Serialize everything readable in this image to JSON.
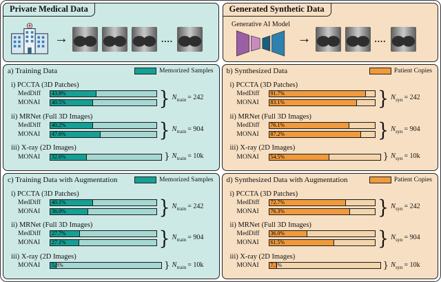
{
  "top": {
    "private_title": "Private Medical Data",
    "synthetic_title": "Generated Synthetic Data",
    "model_label": "Generative AI Model"
  },
  "glyphs": {
    "arrow": "→",
    "dots": "....",
    "brace": "}"
  },
  "colors": {
    "teal_bg": "#cde9e6",
    "teal_fill": "#16a095",
    "teal_track": "#a5d8d3",
    "orange_bg": "#f7dfc3",
    "orange_fill": "#f09a3d",
    "orange_track": "#f3d5ab",
    "ink": "#1b1b1b",
    "model_purple": "#9c5fa5",
    "model_pink": "#c98ac2",
    "model_darkblue": "#17607f",
    "model_blue": "#2f81ad"
  },
  "chart_data": [
    {
      "type": "bar",
      "panel": "a",
      "title": "a) Training Data",
      "legend": "Memorized Samples",
      "unit": "%",
      "xlim": [
        0,
        100
      ],
      "groups": [
        {
          "title": "i) PCCTA (3D Patches)",
          "n_var": "N",
          "n_sub": "train",
          "n_value": "= 242",
          "rows": [
            {
              "label": "MedDiff",
              "pct": 43.8,
              "pct_label": "43.8%"
            },
            {
              "label": "MONAI",
              "pct": 40.5,
              "pct_label": "40.5%"
            }
          ]
        },
        {
          "title": "ii) MRNet (Full 3D Images)",
          "n_var": "N",
          "n_sub": "train",
          "n_value": "= 904",
          "rows": [
            {
              "label": "MedDiff",
              "pct": 40.2,
              "pct_label": "40.2%"
            },
            {
              "label": "MONAI",
              "pct": 47.6,
              "pct_label": "47.6%"
            }
          ]
        },
        {
          "title": "iii) X-ray (2D Images)",
          "n_var": "N",
          "n_sub": "train",
          "n_value": "= 10k",
          "rows": [
            {
              "label": "MONAI",
              "pct": 32.6,
              "pct_label": "32.6%"
            }
          ]
        }
      ]
    },
    {
      "type": "bar",
      "panel": "b",
      "title": "b) Synthesized Data",
      "legend": "Patient Copies",
      "unit": "%",
      "xlim": [
        0,
        100
      ],
      "groups": [
        {
          "title": "i) PCCTA (3D Patches)",
          "n_var": "N",
          "n_sub": "syn",
          "n_value": "= 242",
          "rows": [
            {
              "label": "MedDiff",
              "pct": 91.7,
              "pct_label": "91.7%"
            },
            {
              "label": "MONAI",
              "pct": 83.1,
              "pct_label": "83.1%"
            }
          ]
        },
        {
          "title": "ii) MRNet (Full 3D Images)",
          "n_var": "N",
          "n_sub": "syn",
          "n_value": "= 904",
          "rows": [
            {
              "label": "MedDiff",
              "pct": 76.1,
              "pct_label": "76.1%"
            },
            {
              "label": "MONAI",
              "pct": 87.2,
              "pct_label": "87.2%"
            }
          ]
        },
        {
          "title": "iii) X-ray (2D Images)",
          "n_var": "N",
          "n_sub": "syn",
          "n_value": "= 10k",
          "rows": [
            {
              "label": "MONAI",
              "pct": 54.5,
              "pct_label": "54.5%"
            }
          ]
        }
      ]
    },
    {
      "type": "bar",
      "panel": "c",
      "title": "c) Training Data with Augmentation",
      "legend": "Memorized Samples",
      "unit": "%",
      "xlim": [
        0,
        100
      ],
      "groups": [
        {
          "title": "i) PCCTA (3D Patches)",
          "n_var": "N",
          "n_sub": "train",
          "n_value": "= 242",
          "rows": [
            {
              "label": "MedDiff",
              "pct": 40.1,
              "pct_label": "40.1%"
            },
            {
              "label": "MONAI",
              "pct": 36.0,
              "pct_label": "36.0%"
            }
          ]
        },
        {
          "title": "ii) MRNet (Full 3D Images)",
          "n_var": "N",
          "n_sub": "train",
          "n_value": "= 904",
          "rows": [
            {
              "label": "MedDiff",
              "pct": 27.7,
              "pct_label": "27.7%"
            },
            {
              "label": "MONAI",
              "pct": 27.1,
              "pct_label": "27.1%"
            }
          ]
        },
        {
          "title": "iii) X-ray (2D Images)",
          "n_var": "N",
          "n_sub": "train",
          "n_value": "= 10k",
          "rows": [
            {
              "label": "MONAI",
              "pct": 5.6,
              "pct_label": "5.6%"
            }
          ]
        }
      ]
    },
    {
      "type": "bar",
      "panel": "d",
      "title": "d) Synthesized Data with Augmentation",
      "legend": "Patient Copies",
      "unit": "%",
      "xlim": [
        0,
        100
      ],
      "groups": [
        {
          "title": "i) PCCTA (3D Patches)",
          "n_var": "N",
          "n_sub": "syn",
          "n_value": "= 242",
          "rows": [
            {
              "label": "MedDiff",
              "pct": 72.7,
              "pct_label": "72.7%"
            },
            {
              "label": "MONAI",
              "pct": 76.3,
              "pct_label": "76.3%"
            }
          ]
        },
        {
          "title": "ii) MRNet (Full 3D Images)",
          "n_var": "N",
          "n_sub": "syn",
          "n_value": "= 904",
          "rows": [
            {
              "label": "MedDiff",
              "pct": 36.0,
              "pct_label": "36.0%"
            },
            {
              "label": "MONAI",
              "pct": 61.5,
              "pct_label": "61.5%"
            }
          ]
        },
        {
          "title": "iii) X-ray (2D Images)",
          "n_var": "N",
          "n_sub": "syn",
          "n_value": "= 10k",
          "rows": [
            {
              "label": "MONAI",
              "pct": 7.3,
              "pct_label": "7.3%"
            }
          ]
        }
      ]
    }
  ]
}
